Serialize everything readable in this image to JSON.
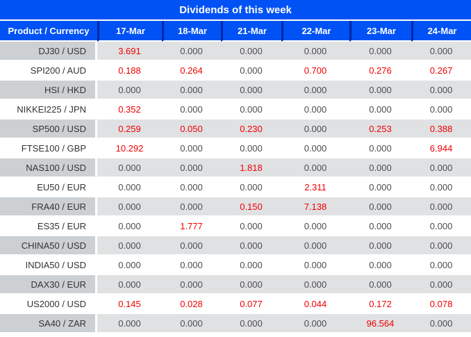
{
  "title": "Dividends of this week",
  "colors": {
    "header_blue": "#0052f5",
    "header_divider": "#0026a7",
    "row_gray_dark": "#ccd0d3",
    "row_gray_light": "#e0e1e3",
    "product_text": "#333333",
    "value_text": "#4c4c4e",
    "highlight_red": "#f00000"
  },
  "chart_data": {
    "type": "table",
    "title": "Dividends of this week",
    "columns": [
      "Product / Currency",
      "17-Mar",
      "18-Mar",
      "21-Mar",
      "22-Mar",
      "23-Mar",
      "24-Mar"
    ],
    "value_format": "3-decimals",
    "highlight_rule": "non-zero values shown in red",
    "rows": [
      {
        "product": "DJ30 / USD",
        "values": [
          3.691,
          0,
          0,
          0,
          0,
          0
        ]
      },
      {
        "product": "SPI200 / AUD",
        "values": [
          0.188,
          0.264,
          0,
          0.7,
          0.276,
          0.267
        ]
      },
      {
        "product": "HSI / HKD",
        "values": [
          0,
          0,
          0,
          0,
          0,
          0
        ]
      },
      {
        "product": "NIKKEI225 / JPN",
        "values": [
          0.352,
          0,
          0,
          0,
          0,
          0
        ]
      },
      {
        "product": "SP500 / USD",
        "values": [
          0.259,
          0.05,
          0.23,
          0,
          0.253,
          0.388
        ]
      },
      {
        "product": "FTSE100 / GBP",
        "values": [
          10.292,
          0,
          0,
          0,
          0,
          6.944
        ]
      },
      {
        "product": "NAS100 / USD",
        "values": [
          0,
          0,
          1.818,
          0,
          0,
          0
        ]
      },
      {
        "product": "EU50 / EUR",
        "values": [
          0,
          0,
          0,
          2.311,
          0,
          0
        ]
      },
      {
        "product": "FRA40 / EUR",
        "values": [
          0,
          0,
          0.15,
          7.138,
          0,
          0
        ]
      },
      {
        "product": "ES35 / EUR",
        "values": [
          0,
          1.777,
          0,
          0,
          0,
          0
        ]
      },
      {
        "product": "CHINA50 / USD",
        "values": [
          0,
          0,
          0,
          0,
          0,
          0
        ]
      },
      {
        "product": "INDIA50 / USD",
        "values": [
          0,
          0,
          0,
          0,
          0,
          0
        ]
      },
      {
        "product": "DAX30 / EUR",
        "values": [
          0,
          0,
          0,
          0,
          0,
          0
        ]
      },
      {
        "product": "US2000 / USD",
        "values": [
          0.145,
          0.028,
          0.077,
          0.044,
          0.172,
          0.078
        ]
      },
      {
        "product": "SA40 / ZAR",
        "values": [
          0,
          0,
          0,
          0,
          96.564,
          0
        ]
      }
    ]
  }
}
